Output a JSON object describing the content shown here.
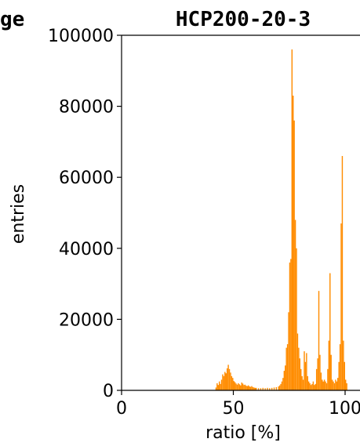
{
  "chart_data": {
    "type": "bar",
    "title": "HCP200-20-3",
    "left_title_fragment": "ge",
    "xlabel": "ratio [%]",
    "ylabel": "entries",
    "xlim": [
      0,
      100
    ],
    "ylim": [
      0,
      100000
    ],
    "x_ticks": [
      0,
      50,
      100
    ],
    "x_tick_labels": [
      "0",
      "50",
      "100"
    ],
    "y_ticks": [
      0,
      20000,
      40000,
      60000,
      80000,
      100000
    ],
    "y_tick_labels": [
      "0",
      "20000",
      "40000",
      "60000",
      "80000",
      "100000"
    ],
    "grid": false,
    "bar_color": "#ff8c00",
    "bins": [
      {
        "x": 42,
        "y": 800
      },
      {
        "x": 42.5,
        "y": 2000
      },
      {
        "x": 43,
        "y": 1500
      },
      {
        "x": 43.5,
        "y": 2500
      },
      {
        "x": 44,
        "y": 1800
      },
      {
        "x": 44.5,
        "y": 3000
      },
      {
        "x": 45,
        "y": 4500
      },
      {
        "x": 45.5,
        "y": 4000
      },
      {
        "x": 46,
        "y": 5200
      },
      {
        "x": 46.5,
        "y": 4800
      },
      {
        "x": 47,
        "y": 6200
      },
      {
        "x": 47.5,
        "y": 7200
      },
      {
        "x": 48,
        "y": 6000
      },
      {
        "x": 48.5,
        "y": 5000
      },
      {
        "x": 49,
        "y": 4000
      },
      {
        "x": 49.5,
        "y": 3500
      },
      {
        "x": 50,
        "y": 2600
      },
      {
        "x": 50.5,
        "y": 2300
      },
      {
        "x": 51,
        "y": 1900
      },
      {
        "x": 51.5,
        "y": 1600
      },
      {
        "x": 52,
        "y": 2000
      },
      {
        "x": 52.5,
        "y": 1700
      },
      {
        "x": 53,
        "y": 1400
      },
      {
        "x": 53.5,
        "y": 2200
      },
      {
        "x": 54,
        "y": 1900
      },
      {
        "x": 54.5,
        "y": 1500
      },
      {
        "x": 55,
        "y": 1600
      },
      {
        "x": 55.5,
        "y": 1300
      },
      {
        "x": 56,
        "y": 1200
      },
      {
        "x": 56.5,
        "y": 1400
      },
      {
        "x": 57,
        "y": 1100
      },
      {
        "x": 57.5,
        "y": 1000
      },
      {
        "x": 58,
        "y": 1200
      },
      {
        "x": 58.5,
        "y": 900
      },
      {
        "x": 59,
        "y": 800
      },
      {
        "x": 59.5,
        "y": 700
      },
      {
        "x": 60,
        "y": 700
      },
      {
        "x": 61,
        "y": 600
      },
      {
        "x": 62,
        "y": 600
      },
      {
        "x": 63,
        "y": 700
      },
      {
        "x": 64,
        "y": 600
      },
      {
        "x": 65,
        "y": 700
      },
      {
        "x": 66,
        "y": 600
      },
      {
        "x": 67,
        "y": 700
      },
      {
        "x": 68,
        "y": 800
      },
      {
        "x": 69,
        "y": 900
      },
      {
        "x": 70,
        "y": 1100
      },
      {
        "x": 70.5,
        "y": 1400
      },
      {
        "x": 71,
        "y": 1800
      },
      {
        "x": 71.5,
        "y": 2500
      },
      {
        "x": 72,
        "y": 3500
      },
      {
        "x": 72.5,
        "y": 5500
      },
      {
        "x": 73,
        "y": 7000
      },
      {
        "x": 73.5,
        "y": 12000
      },
      {
        "x": 74,
        "y": 13000
      },
      {
        "x": 74.5,
        "y": 22000
      },
      {
        "x": 75,
        "y": 36000
      },
      {
        "x": 75.5,
        "y": 37000
      },
      {
        "x": 76,
        "y": 96000
      },
      {
        "x": 76.5,
        "y": 83000
      },
      {
        "x": 77,
        "y": 76000
      },
      {
        "x": 77.5,
        "y": 48000
      },
      {
        "x": 78,
        "y": 40000
      },
      {
        "x": 78.5,
        "y": 16000
      },
      {
        "x": 79,
        "y": 12000
      },
      {
        "x": 79.5,
        "y": 9000
      },
      {
        "x": 80,
        "y": 6000
      },
      {
        "x": 80.5,
        "y": 4000
      },
      {
        "x": 81,
        "y": 3000
      },
      {
        "x": 81.5,
        "y": 11000
      },
      {
        "x": 82,
        "y": 8000
      },
      {
        "x": 82.5,
        "y": 10500
      },
      {
        "x": 83,
        "y": 4000
      },
      {
        "x": 83.5,
        "y": 2500
      },
      {
        "x": 84,
        "y": 2000
      },
      {
        "x": 84.5,
        "y": 1500
      },
      {
        "x": 85,
        "y": 1800
      },
      {
        "x": 85.5,
        "y": 2500
      },
      {
        "x": 86,
        "y": 1500
      },
      {
        "x": 86.5,
        "y": 1800
      },
      {
        "x": 87,
        "y": 6000
      },
      {
        "x": 87.5,
        "y": 9000
      },
      {
        "x": 88,
        "y": 28000
      },
      {
        "x": 88.5,
        "y": 10000
      },
      {
        "x": 89,
        "y": 5000
      },
      {
        "x": 89.5,
        "y": 3000
      },
      {
        "x": 90,
        "y": 2500
      },
      {
        "x": 90.5,
        "y": 3000
      },
      {
        "x": 91,
        "y": 2500
      },
      {
        "x": 91.5,
        "y": 2000
      },
      {
        "x": 92,
        "y": 6000
      },
      {
        "x": 92.5,
        "y": 14000
      },
      {
        "x": 93,
        "y": 33000
      },
      {
        "x": 93.5,
        "y": 10000
      },
      {
        "x": 94,
        "y": 3000
      },
      {
        "x": 94.5,
        "y": 2500
      },
      {
        "x": 95,
        "y": 2000
      },
      {
        "x": 95.5,
        "y": 3000
      },
      {
        "x": 96,
        "y": 2500
      },
      {
        "x": 96.5,
        "y": 3500
      },
      {
        "x": 97,
        "y": 8000
      },
      {
        "x": 97.5,
        "y": 13000
      },
      {
        "x": 98,
        "y": 47000
      },
      {
        "x": 98.5,
        "y": 66000
      },
      {
        "x": 99,
        "y": 14000
      },
      {
        "x": 99.5,
        "y": 8000
      },
      {
        "x": 100,
        "y": 3000
      },
      {
        "x": 100.5,
        "y": 2000
      }
    ]
  }
}
